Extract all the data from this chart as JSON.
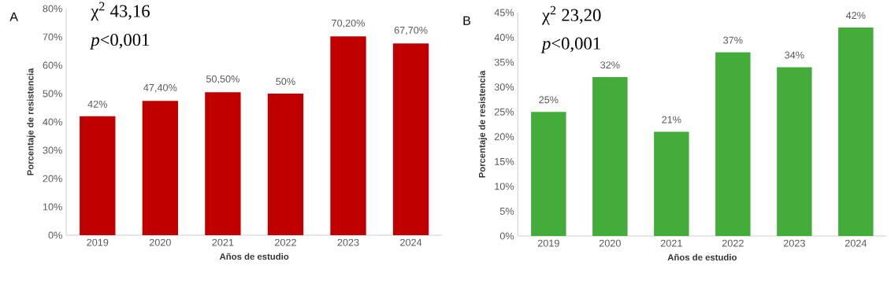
{
  "chart_data": [
    {
      "type": "bar",
      "title": "A",
      "xlabel": "Años de estudio",
      "ylabel": "Porcentaje de resistencia",
      "categories": [
        "2019",
        "2020",
        "2021",
        "2022",
        "2023",
        "2024"
      ],
      "values": [
        42,
        47.4,
        50.5,
        50,
        70.2,
        67.7
      ],
      "value_labels": [
        "42%",
        "47,40%",
        "50,50%",
        "50%",
        "70,20%",
        "67,70%"
      ],
      "color": "#c00000",
      "ylim": [
        0,
        80
      ],
      "yticks": [
        {
          "value": 0,
          "label": "0%"
        },
        {
          "value": 10,
          "label": "10%"
        },
        {
          "value": 20,
          "label": "20%"
        },
        {
          "value": 30,
          "label": "30%"
        },
        {
          "value": 40,
          "label": "40%"
        },
        {
          "value": 50,
          "label": "50%"
        },
        {
          "value": 60,
          "label": "60%"
        },
        {
          "value": 70,
          "label": "70%"
        },
        {
          "value": 80,
          "label": "80%"
        }
      ],
      "annotations": [
        "χ$^{2}$ 43,16",
        "*p*<0,001"
      ]
    },
    {
      "type": "bar",
      "title": "B",
      "xlabel": "Años de estudio",
      "ylabel": "Porcentaje de resistencia",
      "categories": [
        "2019",
        "2020",
        "2021",
        "2022",
        "2023",
        "2024"
      ],
      "values": [
        25,
        32,
        21,
        37,
        34,
        42
      ],
      "value_labels": [
        "25%",
        "32%",
        "21%",
        "37%",
        "34%",
        "42%"
      ],
      "color": "#43ac3b",
      "ylim": [
        0,
        45
      ],
      "yticks": [
        {
          "value": 0,
          "label": "0%"
        },
        {
          "value": 5,
          "label": "5%"
        },
        {
          "value": 10,
          "label": "10%"
        },
        {
          "value": 15,
          "label": "15%"
        },
        {
          "value": 20,
          "label": "20%"
        },
        {
          "value": 25,
          "label": "25%"
        },
        {
          "value": 30,
          "label": "30%"
        },
        {
          "value": 35,
          "label": "35%"
        },
        {
          "value": 40,
          "label": "40%"
        },
        {
          "value": 45,
          "label": "45%"
        }
      ],
      "annotations": [
        "χ$^{2}$ 23,20",
        "*p*<0,001"
      ]
    }
  ]
}
